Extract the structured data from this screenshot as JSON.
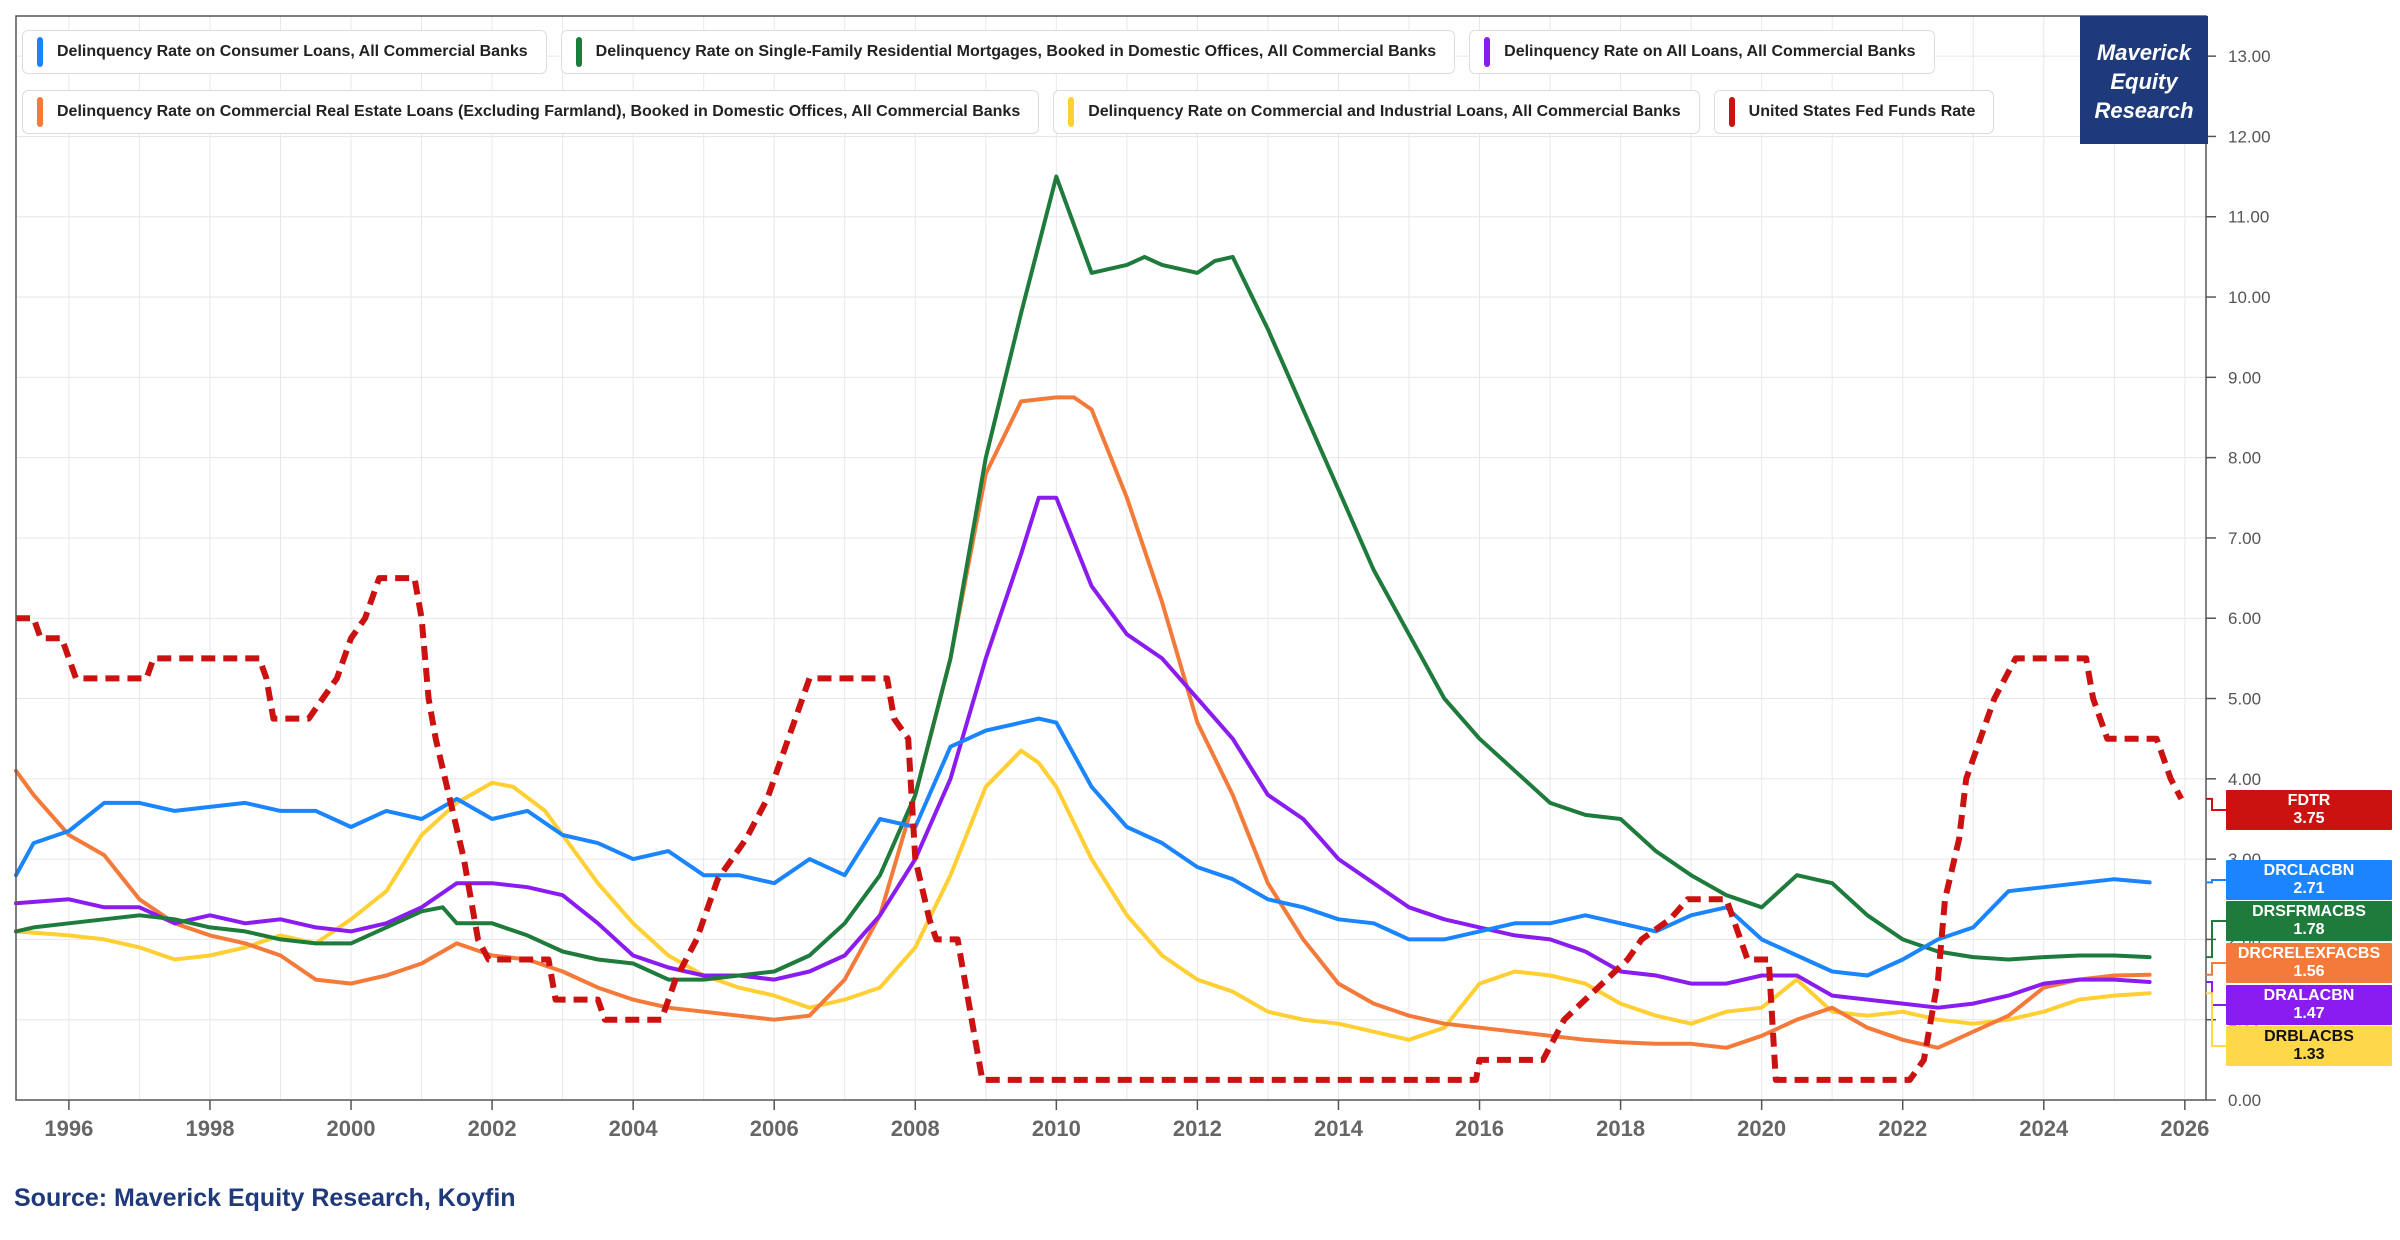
{
  "brand": {
    "line1": "Maverick",
    "line2": "Equity",
    "line3": "Research",
    "color": "#1f3a7a"
  },
  "source_text": "Source: Maverick Equity Research, Koyfin",
  "legend": [
    {
      "label": "Delinquency Rate on Consumer Loans, All Commercial Banks",
      "color": "#1a85ff"
    },
    {
      "label": "Delinquency Rate on Single-Family Residential Mortgages, Booked in Domestic Offices, All Commercial Banks",
      "color": "#1e7b3c"
    },
    {
      "label": "Delinquency Rate on All Loans, All Commercial Banks",
      "color": "#8b1cf0"
    },
    {
      "label": "Delinquency Rate on Commercial Real Estate Loans (Excluding Farmland), Booked in Domestic Offices, All Commercial Banks",
      "color": "#f47a3a"
    },
    {
      "label": "Delinquency Rate on Commercial and Industrial Loans, All Commercial Banks",
      "color": "#ffcf33"
    },
    {
      "label": "United States Fed Funds Rate",
      "color": "#cc1111"
    }
  ],
  "tags": [
    {
      "code": "FDTR",
      "value": "3.75",
      "color": "#cc1111",
      "dark": false
    },
    {
      "code": "DRCLACBN",
      "value": "2.71",
      "color": "#1a85ff",
      "dark": false
    },
    {
      "code": "DRSFRMACBS",
      "value": "1.78",
      "color": "#1e7b3c",
      "dark": false
    },
    {
      "code": "DRCRELEXFACBS",
      "value": "1.56",
      "color": "#f47a3a",
      "dark": false
    },
    {
      "code": "DRALACBN",
      "value": "1.47",
      "color": "#8b1cf0",
      "dark": false
    },
    {
      "code": "DRBLACBS",
      "value": "1.33",
      "color": "#ffd84a",
      "dark": true
    }
  ],
  "chart_data": {
    "type": "line",
    "title": "",
    "xlabel": "",
    "ylabel": "",
    "xlim": [
      1995.25,
      2026.3
    ],
    "ylim": [
      0,
      13.5
    ],
    "grid": true,
    "x_ticks": [
      "1996",
      "1998",
      "2000",
      "2002",
      "2004",
      "2006",
      "2008",
      "2010",
      "2012",
      "2014",
      "2016",
      "2018",
      "2020",
      "2022",
      "2024",
      "2026"
    ],
    "y_ticks": [
      "0.00",
      "1.00",
      "2.00",
      "3.00",
      "4.00",
      "5.00",
      "6.00",
      "7.00",
      "8.00",
      "9.00",
      "10.00",
      "11.00",
      "12.00",
      "13.00"
    ],
    "series": [
      {
        "name": "Delinquency Rate on Commercial and Industrial Loans, All Commercial Banks",
        "code": "DRBLACBS",
        "color": "#ffcf33",
        "dashed": false,
        "x": [
          1995.25,
          1996,
          1996.5,
          1997,
          1997.5,
          1998,
          1998.5,
          1999,
          1999.5,
          2000,
          2000.5,
          2001,
          2001.5,
          2002,
          2002.3,
          2002.75,
          2003,
          2003.5,
          2004,
          2004.5,
          2005,
          2005.5,
          2006,
          2006.5,
          2007,
          2007.5,
          2008,
          2008.5,
          2009,
          2009.5,
          2009.75,
          2010,
          2010.5,
          2011,
          2011.5,
          2012,
          2012.5,
          2013,
          2013.5,
          2014,
          2014.5,
          2015,
          2015.5,
          2016,
          2016.5,
          2017,
          2017.5,
          2018,
          2018.5,
          2019,
          2019.5,
          2020,
          2020.5,
          2021,
          2021.5,
          2022,
          2022.5,
          2023,
          2023.5,
          2024,
          2024.5,
          2025,
          2025.5
        ],
        "y": [
          2.1,
          2.05,
          2.0,
          1.9,
          1.75,
          1.8,
          1.9,
          2.05,
          1.95,
          2.25,
          2.6,
          3.3,
          3.7,
          3.95,
          3.9,
          3.6,
          3.3,
          2.7,
          2.2,
          1.8,
          1.55,
          1.4,
          1.3,
          1.15,
          1.25,
          1.4,
          1.9,
          2.8,
          3.9,
          4.35,
          4.2,
          3.9,
          3.0,
          2.3,
          1.8,
          1.5,
          1.35,
          1.1,
          1.0,
          0.95,
          0.85,
          0.75,
          0.9,
          1.45,
          1.6,
          1.55,
          1.45,
          1.2,
          1.05,
          0.95,
          1.1,
          1.15,
          1.5,
          1.1,
          1.05,
          1.1,
          1.0,
          0.95,
          1.0,
          1.1,
          1.25,
          1.3,
          1.33
        ]
      },
      {
        "name": "Delinquency Rate on Commercial Real Estate Loans (Excluding Farmland), Booked in Domestic Offices, All Commercial Banks",
        "code": "DRCRELEXFACBS",
        "color": "#f47a3a",
        "dashed": false,
        "x": [
          1995.25,
          1995.5,
          1996,
          1996.5,
          1997,
          1997.5,
          1998,
          1998.5,
          1999,
          1999.5,
          2000,
          2000.5,
          2001,
          2001.5,
          2002,
          2002.5,
          2003,
          2003.5,
          2004,
          2004.5,
          2005,
          2005.5,
          2006,
          2006.5,
          2007,
          2007.5,
          2008,
          2008.5,
          2009,
          2009.5,
          2010,
          2010.25,
          2010.5,
          2011,
          2011.5,
          2012,
          2012.5,
          2013,
          2013.5,
          2014,
          2014.5,
          2015,
          2015.5,
          2016,
          2016.5,
          2017,
          2017.5,
          2018,
          2018.5,
          2019,
          2019.5,
          2020,
          2020.5,
          2021,
          2021.5,
          2022,
          2022.5,
          2023,
          2023.5,
          2024,
          2024.5,
          2025,
          2025.5
        ],
        "y": [
          4.1,
          3.8,
          3.3,
          3.05,
          2.5,
          2.2,
          2.05,
          1.95,
          1.8,
          1.5,
          1.45,
          1.55,
          1.7,
          1.95,
          1.8,
          1.75,
          1.6,
          1.4,
          1.25,
          1.15,
          1.1,
          1.05,
          1.0,
          1.05,
          1.5,
          2.3,
          3.8,
          5.5,
          7.8,
          8.7,
          8.75,
          8.75,
          8.6,
          7.5,
          6.2,
          4.7,
          3.8,
          2.7,
          2.0,
          1.45,
          1.2,
          1.05,
          0.95,
          0.9,
          0.85,
          0.8,
          0.75,
          0.72,
          0.7,
          0.7,
          0.65,
          0.8,
          1.0,
          1.15,
          0.9,
          0.75,
          0.65,
          0.85,
          1.05,
          1.4,
          1.5,
          1.55,
          1.56
        ]
      },
      {
        "name": "Delinquency Rate on All Loans, All Commercial Banks",
        "code": "DRALACBN",
        "color": "#8b1cf0",
        "dashed": false,
        "x": [
          1995.25,
          1996,
          1996.5,
          1997,
          1997.5,
          1998,
          1998.5,
          1999,
          1999.5,
          2000,
          2000.5,
          2001,
          2001.5,
          2002,
          2002.5,
          2003,
          2003.5,
          2004,
          2004.5,
          2005,
          2005.5,
          2006,
          2006.5,
          2007,
          2007.5,
          2008,
          2008.5,
          2009,
          2009.5,
          2009.75,
          2010,
          2010.5,
          2011,
          2011.5,
          2012,
          2012.5,
          2013,
          2013.5,
          2014,
          2014.5,
          2015,
          2015.5,
          2016,
          2016.5,
          2017,
          2017.5,
          2018,
          2018.5,
          2019,
          2019.5,
          2020,
          2020.5,
          2021,
          2021.5,
          2022,
          2022.5,
          2023,
          2023.5,
          2024,
          2024.5,
          2025,
          2025.5
        ],
        "y": [
          2.45,
          2.5,
          2.4,
          2.4,
          2.2,
          2.3,
          2.2,
          2.25,
          2.15,
          2.1,
          2.2,
          2.4,
          2.7,
          2.7,
          2.65,
          2.55,
          2.2,
          1.8,
          1.65,
          1.55,
          1.55,
          1.5,
          1.6,
          1.8,
          2.3,
          3.0,
          4.0,
          5.5,
          6.8,
          7.5,
          7.5,
          6.4,
          5.8,
          5.5,
          5.0,
          4.5,
          3.8,
          3.5,
          3.0,
          2.7,
          2.4,
          2.25,
          2.15,
          2.05,
          2.0,
          1.85,
          1.6,
          1.55,
          1.45,
          1.45,
          1.55,
          1.55,
          1.3,
          1.25,
          1.2,
          1.15,
          1.2,
          1.3,
          1.45,
          1.5,
          1.5,
          1.47
        ]
      },
      {
        "name": "Delinquency Rate on Single-Family Residential Mortgages, Booked in Domestic Offices, All Commercial Banks",
        "code": "DRSFRMACBS",
        "color": "#1e7b3c",
        "dashed": false,
        "x": [
          1995.25,
          1995.5,
          1996,
          1996.5,
          1997,
          1997.5,
          1998,
          1998.5,
          1999,
          1999.5,
          2000,
          2000.5,
          2001,
          2001.3,
          2001.5,
          2002,
          2002.5,
          2003,
          2003.5,
          2004,
          2004.5,
          2005,
          2005.5,
          2006,
          2006.5,
          2007,
          2007.5,
          2008,
          2008.5,
          2009,
          2009.5,
          2010,
          2010.5,
          2011,
          2011.25,
          2011.5,
          2012,
          2012.25,
          2012.5,
          2013,
          2013.5,
          2014,
          2014.5,
          2015,
          2015.5,
          2016,
          2016.5,
          2017,
          2017.5,
          2018,
          2018.5,
          2019,
          2019.5,
          2020,
          2020.5,
          2021,
          2021.5,
          2022,
          2022.5,
          2023,
          2023.5,
          2024,
          2024.5,
          2025,
          2025.5
        ],
        "y": [
          2.1,
          2.15,
          2.2,
          2.25,
          2.3,
          2.25,
          2.15,
          2.1,
          2.0,
          1.95,
          1.95,
          2.15,
          2.35,
          2.4,
          2.2,
          2.2,
          2.05,
          1.85,
          1.75,
          1.7,
          1.5,
          1.5,
          1.55,
          1.6,
          1.8,
          2.2,
          2.8,
          3.8,
          5.5,
          8.0,
          9.8,
          11.5,
          10.3,
          10.4,
          10.5,
          10.4,
          10.3,
          10.45,
          10.5,
          9.6,
          8.6,
          7.6,
          6.6,
          5.8,
          5.0,
          4.5,
          4.1,
          3.7,
          3.55,
          3.5,
          3.1,
          2.8,
          2.55,
          2.4,
          2.8,
          2.7,
          2.3,
          2.0,
          1.85,
          1.78,
          1.75,
          1.78,
          1.8,
          1.8,
          1.78
        ]
      },
      {
        "name": "Delinquency Rate on Consumer Loans, All Commercial Banks",
        "code": "DRCLACBN",
        "color": "#1a85ff",
        "dashed": false,
        "x": [
          1995.25,
          1995.5,
          1996,
          1996.5,
          1997,
          1997.5,
          1998,
          1998.5,
          1999,
          1999.5,
          2000,
          2000.5,
          2001,
          2001.5,
          2002,
          2002.5,
          2003,
          2003.5,
          2004,
          2004.5,
          2005,
          2005.5,
          2006,
          2006.5,
          2007,
          2007.5,
          2008,
          2008.5,
          2009,
          2009.5,
          2009.75,
          2010,
          2010.5,
          2011,
          2011.5,
          2012,
          2012.5,
          2013,
          2013.5,
          2014,
          2014.5,
          2015,
          2015.5,
          2016,
          2016.5,
          2017,
          2017.5,
          2018,
          2018.5,
          2019,
          2019.5,
          2020,
          2020.5,
          2021,
          2021.5,
          2022,
          2022.5,
          2023,
          2023.5,
          2024,
          2024.5,
          2025,
          2025.5
        ],
        "y": [
          2.8,
          3.2,
          3.35,
          3.7,
          3.7,
          3.6,
          3.65,
          3.7,
          3.6,
          3.6,
          3.4,
          3.6,
          3.5,
          3.75,
          3.5,
          3.6,
          3.3,
          3.2,
          3.0,
          3.1,
          2.8,
          2.8,
          2.7,
          3.0,
          2.8,
          3.5,
          3.4,
          4.4,
          4.6,
          4.7,
          4.75,
          4.7,
          3.9,
          3.4,
          3.2,
          2.9,
          2.75,
          2.5,
          2.4,
          2.25,
          2.2,
          2.0,
          2.0,
          2.1,
          2.2,
          2.2,
          2.3,
          2.2,
          2.1,
          2.3,
          2.4,
          2.0,
          1.8,
          1.6,
          1.55,
          1.75,
          2.0,
          2.15,
          2.6,
          2.65,
          2.7,
          2.75,
          2.71
        ]
      },
      {
        "name": "United States Fed Funds Rate",
        "code": "FDTR",
        "color": "#cc1111",
        "dashed": true,
        "x": [
          1995.25,
          1995.5,
          1995.6,
          1995.9,
          1996.0,
          1996.1,
          1997.1,
          1997.2,
          1998.7,
          1998.8,
          1998.9,
          1999.4,
          1999.6,
          1999.8,
          2000.0,
          2000.2,
          2000.4,
          2000.9,
          2001.0,
          2001.1,
          2001.2,
          2001.4,
          2001.6,
          2001.8,
          2001.95,
          2002.8,
          2002.9,
          2003.5,
          2003.6,
          2004.4,
          2004.6,
          2004.9,
          2005.2,
          2005.6,
          2005.9,
          2006.2,
          2006.5,
          2007.6,
          2007.7,
          2007.9,
          2008.0,
          2008.2,
          2008.3,
          2008.6,
          2008.8,
          2008.95,
          2015.95,
          2016.0,
          2016.9,
          2017.2,
          2017.5,
          2017.8,
          2018.1,
          2018.3,
          2018.7,
          2018.95,
          2019.5,
          2019.6,
          2019.8,
          2020.1,
          2020.2,
          2022.1,
          2022.3,
          2022.5,
          2022.6,
          2022.8,
          2022.9,
          2023.1,
          2023.3,
          2023.6,
          2024.6,
          2024.7,
          2024.8,
          2024.9,
          2025.6,
          2025.7,
          2025.8,
          2025.95
        ],
        "y": [
          6.0,
          6.0,
          5.75,
          5.75,
          5.5,
          5.25,
          5.25,
          5.5,
          5.5,
          5.25,
          4.75,
          4.75,
          5.0,
          5.25,
          5.75,
          6.0,
          6.5,
          6.5,
          6.0,
          5.0,
          4.5,
          3.75,
          3.0,
          2.0,
          1.75,
          1.75,
          1.25,
          1.25,
          1.0,
          1.0,
          1.5,
          2.0,
          2.75,
          3.25,
          3.75,
          4.5,
          5.25,
          5.25,
          4.75,
          4.5,
          3.0,
          2.25,
          2.0,
          2.0,
          1.0,
          0.25,
          0.25,
          0.5,
          0.5,
          1.0,
          1.25,
          1.5,
          1.75,
          2.0,
          2.25,
          2.5,
          2.5,
          2.25,
          1.75,
          1.75,
          0.25,
          0.25,
          0.5,
          1.5,
          2.5,
          3.25,
          4.0,
          4.5,
          5.0,
          5.5,
          5.5,
          5.0,
          4.75,
          4.5,
          4.5,
          4.25,
          4.0,
          3.75
        ]
      }
    ]
  }
}
